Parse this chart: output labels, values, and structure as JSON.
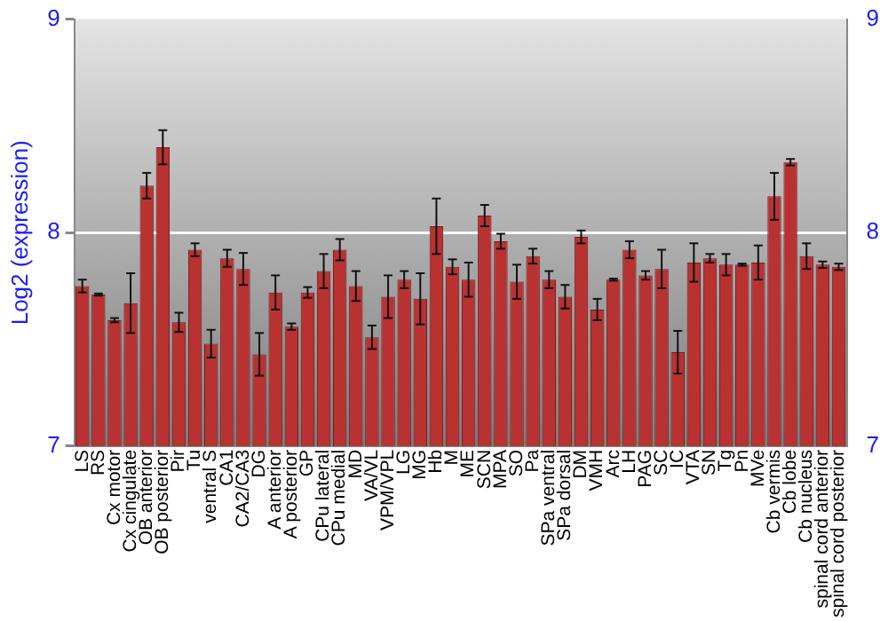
{
  "chart_data": {
    "type": "bar",
    "ylabel": "Log2 (expression)",
    "categories": [
      "LS",
      "RS",
      "Cx motor",
      "Cx cingulate",
      "OB anterior",
      "OB posterior",
      "Pir",
      "Tu",
      "ventral S",
      "CA1",
      "CA2/CA3",
      "DG",
      "A anterior",
      "A posterior",
      "GP",
      "CPu lateral",
      "CPu medial",
      "MD",
      "VA/VL",
      "VPM/VPL",
      "LG",
      "MG",
      "Hb",
      "M",
      "ME",
      "SCN",
      "MPA",
      "SO",
      "Pa",
      "SPa ventral",
      "SPa dorsal",
      "DM",
      "VMH",
      "Arc",
      "LH",
      "PAG",
      "SC",
      "IC",
      "VTA",
      "SN",
      "Tg",
      "Pn",
      "MVe",
      "Cb vermis",
      "Cb lobe",
      "Cb nucleus",
      "spinal cord anterior",
      "spinal cord posterior"
    ],
    "values": [
      7.75,
      7.71,
      7.59,
      7.67,
      8.22,
      8.4,
      7.58,
      7.92,
      7.48,
      7.88,
      7.83,
      7.43,
      7.72,
      7.56,
      7.72,
      7.82,
      7.92,
      7.75,
      7.51,
      7.7,
      7.78,
      7.69,
      8.03,
      7.84,
      7.78,
      8.08,
      7.96,
      7.77,
      7.89,
      7.78,
      7.7,
      7.98,
      7.64,
      7.78,
      7.92,
      7.8,
      7.83,
      7.44,
      7.86,
      7.88,
      7.85,
      7.85,
      7.86,
      8.17,
      8.33,
      7.89,
      7.85,
      7.84
    ],
    "errors": [
      0.03,
      0.005,
      0.01,
      0.14,
      0.06,
      0.08,
      0.045,
      0.03,
      0.065,
      0.04,
      0.075,
      0.1,
      0.08,
      0.015,
      0.025,
      0.08,
      0.05,
      0.07,
      0.055,
      0.1,
      0.04,
      0.12,
      0.13,
      0.035,
      0.08,
      0.05,
      0.035,
      0.08,
      0.035,
      0.04,
      0.055,
      0.03,
      0.05,
      0.005,
      0.04,
      0.02,
      0.09,
      0.1,
      0.09,
      0.02,
      0.05,
      0.005,
      0.08,
      0.11,
      0.015,
      0.06,
      0.015,
      0.015
    ],
    "color": "#b83232",
    "ylim": [
      7,
      9
    ],
    "yticks": [
      7,
      8,
      9
    ],
    "y2lim": [
      7,
      9
    ],
    "y2ticks": [
      7,
      8,
      9
    ],
    "grid": "y",
    "legend": false
  }
}
